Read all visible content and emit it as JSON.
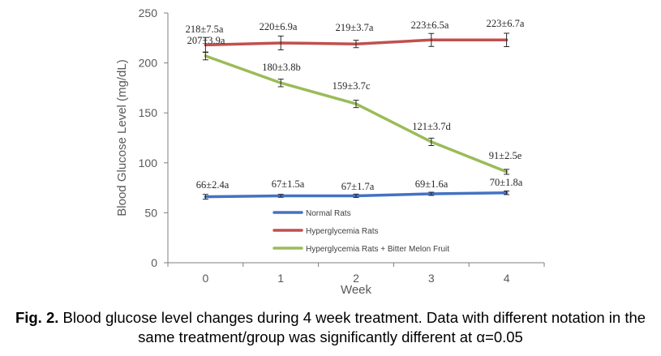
{
  "chart_data": {
    "type": "line",
    "xlabel": "Week",
    "ylabel": "Blood Glucose Level (mg/dL)",
    "x": [
      0,
      1,
      2,
      3,
      4
    ],
    "xlim": [
      -0.5,
      4.5
    ],
    "ylim": [
      0,
      250
    ],
    "yticks": [
      0,
      50,
      100,
      150,
      200,
      250
    ],
    "grid": false,
    "legend_position": "center-bottom",
    "series": [
      {
        "name": "Normal Rats",
        "color": "#4472C4",
        "values": [
          66,
          67,
          67,
          69,
          70
        ],
        "errors": [
          2.4,
          1.5,
          1.7,
          1.6,
          1.8
        ],
        "labels": [
          "66±2.4a",
          "67±1.5a",
          "67±1.7a",
          "69±1.6a",
          "70±1.8a"
        ]
      },
      {
        "name": "Hyperglycemia Rats",
        "color": "#C0504D",
        "values": [
          218,
          220,
          219,
          223,
          223
        ],
        "errors": [
          7.5,
          6.9,
          3.7,
          6.5,
          6.7
        ],
        "labels": [
          "218±7.5a",
          "220±6.9a",
          "219±3.7a",
          "223±6.5a",
          "223±6.7a"
        ]
      },
      {
        "name": "Hyperglycemia Rats + Bitter Melon Fruit",
        "color": "#9BBB59",
        "values": [
          207,
          180,
          159,
          121,
          91
        ],
        "errors": [
          3.9,
          3.8,
          3.7,
          3.7,
          2.5
        ],
        "labels": [
          "207±3.9a",
          "180±3.8b",
          "159±3.7c",
          "121±3.7d",
          "91±2.5e"
        ]
      }
    ]
  },
  "caption": {
    "label": "Fig. 2.",
    "text": " Blood glucose level changes during 4 week treatment.  Data with different notation in the same treatment/group was significantly different at α=0.05"
  }
}
